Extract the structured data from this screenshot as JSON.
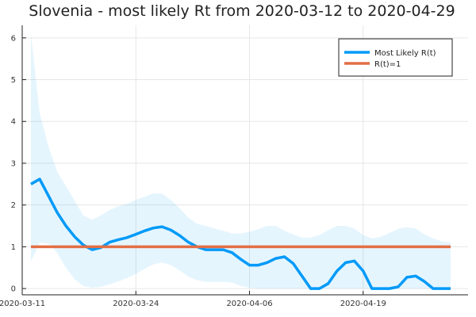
{
  "chart_data": {
    "type": "line",
    "title": "Slovenia - most likely Rt from 2020-03-12 to 2020-04-29",
    "xlabel": "",
    "ylabel": "",
    "x_start": "2020-03-12",
    "x_end": "2020-04-29",
    "xlim": [
      "2020-03-11",
      "2020-05-01"
    ],
    "ylim": [
      -0.15,
      6.3
    ],
    "x_ticks": [
      "2020-03-11",
      "2020-03-24",
      "2020-04-06",
      "2020-04-19"
    ],
    "y_ticks": [
      0,
      1,
      2,
      3,
      4,
      5,
      6
    ],
    "grid": true,
    "legend_position": "top-right",
    "dates": [
      "2020-03-12",
      "2020-03-13",
      "2020-03-14",
      "2020-03-15",
      "2020-03-16",
      "2020-03-17",
      "2020-03-18",
      "2020-03-19",
      "2020-03-20",
      "2020-03-21",
      "2020-03-22",
      "2020-03-23",
      "2020-03-24",
      "2020-03-25",
      "2020-03-26",
      "2020-03-27",
      "2020-03-28",
      "2020-03-29",
      "2020-03-30",
      "2020-03-31",
      "2020-04-01",
      "2020-04-02",
      "2020-04-03",
      "2020-04-04",
      "2020-04-05",
      "2020-04-06",
      "2020-04-07",
      "2020-04-08",
      "2020-04-09",
      "2020-04-10",
      "2020-04-11",
      "2020-04-12",
      "2020-04-13",
      "2020-04-14",
      "2020-04-15",
      "2020-04-16",
      "2020-04-17",
      "2020-04-18",
      "2020-04-19",
      "2020-04-20",
      "2020-04-21",
      "2020-04-22",
      "2020-04-23",
      "2020-04-24",
      "2020-04-25",
      "2020-04-26",
      "2020-04-27",
      "2020-04-28",
      "2020-04-29"
    ],
    "series": [
      {
        "name": "Most Likely R(t)",
        "color": "#009af9",
        "values": [
          2.5,
          2.62,
          2.22,
          1.82,
          1.5,
          1.24,
          1.04,
          0.93,
          0.98,
          1.11,
          1.17,
          1.22,
          1.3,
          1.38,
          1.45,
          1.48,
          1.4,
          1.27,
          1.11,
          1.0,
          0.93,
          0.93,
          0.93,
          0.86,
          0.7,
          0.56,
          0.56,
          0.62,
          0.72,
          0.76,
          0.6,
          0.3,
          0.0,
          0.0,
          0.12,
          0.42,
          0.62,
          0.66,
          0.42,
          0.0,
          0.0,
          0.0,
          0.04,
          0.27,
          0.3,
          0.17,
          0.0,
          0.0,
          0.0
        ]
      },
      {
        "name": "R(t)=1",
        "color": "#e26f46",
        "values": [
          1,
          1,
          1,
          1,
          1,
          1,
          1,
          1,
          1,
          1,
          1,
          1,
          1,
          1,
          1,
          1,
          1,
          1,
          1,
          1,
          1,
          1,
          1,
          1,
          1,
          1,
          1,
          1,
          1,
          1,
          1,
          1,
          1,
          1,
          1,
          1,
          1,
          1,
          1,
          1,
          1,
          1,
          1,
          1,
          1,
          1,
          1,
          1,
          1
        ]
      }
    ],
    "band": {
      "color": "#009af9",
      "upper": [
        6.1,
        4.2,
        3.4,
        2.8,
        2.45,
        2.1,
        1.75,
        1.65,
        1.75,
        1.88,
        1.97,
        2.03,
        2.12,
        2.2,
        2.28,
        2.27,
        2.12,
        1.92,
        1.7,
        1.55,
        1.5,
        1.44,
        1.38,
        1.32,
        1.32,
        1.36,
        1.42,
        1.5,
        1.5,
        1.38,
        1.3,
        1.22,
        1.22,
        1.28,
        1.4,
        1.5,
        1.5,
        1.44,
        1.28,
        1.2,
        1.24,
        1.33,
        1.43,
        1.47,
        1.44,
        1.3,
        1.2,
        1.13,
        1.1
      ],
      "lower": [
        0.65,
        1.1,
        1.08,
        0.85,
        0.5,
        0.22,
        0.06,
        0.02,
        0.04,
        0.1,
        0.17,
        0.25,
        0.35,
        0.47,
        0.58,
        0.62,
        0.56,
        0.43,
        0.28,
        0.2,
        0.16,
        0.16,
        0.16,
        0.14,
        0.06,
        0.02,
        0.0,
        0.0,
        0.0,
        0.0,
        0.0,
        0.0,
        0.0,
        0.0,
        0.0,
        0.0,
        0.0,
        0.0,
        0.0,
        0.0,
        0.0,
        0.0,
        0.0,
        0.0,
        0.0,
        0.0,
        0.0,
        0.0,
        0.0
      ]
    }
  }
}
